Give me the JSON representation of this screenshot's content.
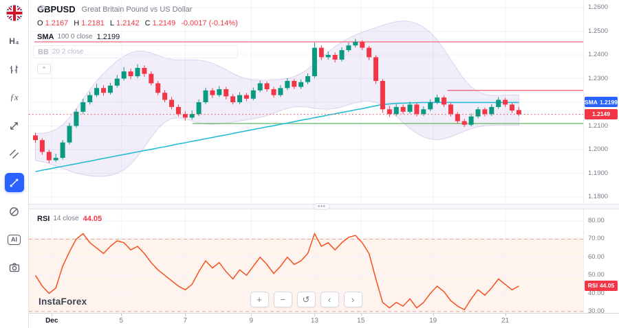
{
  "header": {
    "symbol": "GBPUSD",
    "description": "Great Britain Pound vs US Dollar",
    "ohlc": [
      {
        "k": "O",
        "v": "1.2167"
      },
      {
        "k": "H",
        "v": "1.2181"
      },
      {
        "k": "L",
        "v": "1.2142"
      },
      {
        "k": "C",
        "v": "1.2149"
      }
    ],
    "change": "-0.0017 (-0.14%)",
    "indicators": [
      {
        "name": "SMA",
        "params": "100 0 close",
        "value": "1.2199"
      },
      {
        "name": "BB",
        "params": "20 2 close",
        "value": ""
      }
    ],
    "collapse_glyph": "^"
  },
  "sidebar": {
    "items": [
      {
        "name": "account",
        "label": ""
      },
      {
        "name": "timeframe",
        "label": "H₄"
      },
      {
        "name": "chart-type",
        "label": ""
      },
      {
        "name": "indicators",
        "label": "ƒx"
      },
      {
        "name": "trend-line-tool",
        "label": ""
      },
      {
        "name": "brush-tool",
        "label": ""
      },
      {
        "name": "pattern-tool",
        "label": "",
        "active": true
      },
      {
        "name": "eraser-tool",
        "label": ""
      },
      {
        "name": "ai-tool",
        "label": "AI"
      },
      {
        "name": "snapshot-tool",
        "label": ""
      }
    ]
  },
  "price_axis": {
    "labels": [
      {
        "text": "1.2600",
        "value": 1.26
      },
      {
        "text": "1.2500",
        "value": 1.25
      },
      {
        "text": "1.2400",
        "value": 1.24
      },
      {
        "text": "1.2300",
        "value": 1.23
      },
      {
        "text": "1.2100",
        "value": 1.21
      },
      {
        "text": "1.2000",
        "value": 1.2
      },
      {
        "text": "1.1900",
        "value": 1.19
      },
      {
        "text": "1.1800",
        "value": 1.18
      }
    ],
    "sma_badge": {
      "label": "SMA",
      "value": "1.2199"
    },
    "price_badge": "1.2149"
  },
  "time_axis": {
    "labels": [
      {
        "text": "Dec",
        "idx": 2.4,
        "major": true
      },
      {
        "text": "5",
        "idx": 12.6
      },
      {
        "text": "7",
        "idx": 22
      },
      {
        "text": "9",
        "idx": 31.7
      },
      {
        "text": "13",
        "idx": 41
      },
      {
        "text": "15",
        "idx": 47.8
      },
      {
        "text": "19",
        "idx": 58.4
      },
      {
        "text": "21",
        "idx": 69
      }
    ]
  },
  "rsi_pane": {
    "legend": {
      "name": "RSI",
      "params": "14 close",
      "value": "44.05"
    },
    "axis_labels": [
      {
        "text": "80.00",
        "value": 80
      },
      {
        "text": "70.00",
        "value": 70
      },
      {
        "text": "60.00",
        "value": 60
      },
      {
        "text": "50.00",
        "value": 50
      },
      {
        "text": "40.00",
        "value": 40
      },
      {
        "text": "30.00",
        "value": 30
      }
    ],
    "badge": {
      "label": "RSI",
      "value": "44.05"
    }
  },
  "separator": {
    "handle": "•••"
  },
  "watermark": "InstaForex",
  "toolbar": {
    "buttons": [
      {
        "name": "zoom-in",
        "glyph": "+"
      },
      {
        "name": "zoom-out",
        "glyph": "−"
      },
      {
        "name": "reset-view",
        "glyph": "↺"
      },
      {
        "name": "scroll-left",
        "glyph": "‹"
      },
      {
        "name": "scroll-right",
        "glyph": "›"
      }
    ]
  },
  "colors": {
    "up": "#089981",
    "down": "#f23645",
    "sma": "#22bcd2",
    "bb": "#7c4dff",
    "rsi": "#f4511e",
    "accent": "#2962ff",
    "level_pink": "#f0647e",
    "level_green": "#5cb860"
  },
  "chart_data": [
    {
      "type": "candlestick",
      "title": "GBPUSD H4",
      "price_range": [
        1.18,
        1.26
      ],
      "grid_prices": [
        1.18,
        1.19,
        1.2,
        1.21,
        1.22,
        1.23,
        1.24,
        1.25,
        1.26
      ],
      "levels": [
        {
          "name": "resistance-upper",
          "price": 1.2455,
          "color": "#f0647e",
          "style": "solid",
          "x1": 0.01,
          "x2": 1
        },
        {
          "name": "resistance-lower",
          "price": 1.225,
          "color": "#f0647e",
          "style": "solid",
          "x1": 0.755,
          "x2": 1
        },
        {
          "name": "support",
          "price": 1.211,
          "color": "#5cb860",
          "style": "solid",
          "x1": 0.295,
          "x2": 1
        },
        {
          "name": "last-price",
          "price": 1.2149,
          "color": "#f23645",
          "style": "dotted",
          "x1": 0,
          "x2": 1
        }
      ],
      "candles": [
        [
          1.206,
          1.2072,
          1.2028,
          1.204
        ],
        [
          1.204,
          1.2048,
          1.1978,
          1.199
        ],
        [
          1.199,
          1.2,
          1.1942,
          1.1955
        ],
        [
          1.1955,
          1.1982,
          1.1948,
          1.1965
        ],
        [
          1.1965,
          1.204,
          1.1958,
          1.203
        ],
        [
          1.203,
          1.2112,
          1.2022,
          1.21
        ],
        [
          1.21,
          1.2172,
          1.2092,
          1.216
        ],
        [
          1.216,
          1.2215,
          1.215,
          1.22
        ],
        [
          1.22,
          1.2244,
          1.219,
          1.223
        ],
        [
          1.223,
          1.2278,
          1.2222,
          1.226
        ],
        [
          1.226,
          1.2272,
          1.2228,
          1.224
        ],
        [
          1.224,
          1.2282,
          1.2232,
          1.227
        ],
        [
          1.227,
          1.2315,
          1.2262,
          1.23
        ],
        [
          1.23,
          1.2348,
          1.2292,
          1.233
        ],
        [
          1.233,
          1.2342,
          1.2298,
          1.231
        ],
        [
          1.231,
          1.236,
          1.2302,
          1.2345
        ],
        [
          1.2345,
          1.2356,
          1.2308,
          1.232
        ],
        [
          1.232,
          1.233,
          1.227,
          1.228
        ],
        [
          1.228,
          1.229,
          1.223,
          1.224
        ],
        [
          1.224,
          1.2252,
          1.22,
          1.221
        ],
        [
          1.221,
          1.2222,
          1.217,
          1.218
        ],
        [
          1.218,
          1.219,
          1.214,
          1.215
        ],
        [
          1.215,
          1.2162,
          1.2122,
          1.2135
        ],
        [
          1.2135,
          1.2165,
          1.2126,
          1.215
        ],
        [
          1.215,
          1.2212,
          1.2142,
          1.22
        ],
        [
          1.22,
          1.2262,
          1.2192,
          1.225
        ],
        [
          1.225,
          1.226,
          1.2218,
          1.223
        ],
        [
          1.223,
          1.2268,
          1.2222,
          1.2255
        ],
        [
          1.2255,
          1.2265,
          1.2212,
          1.2225
        ],
        [
          1.2225,
          1.2235,
          1.219,
          1.22
        ],
        [
          1.22,
          1.2242,
          1.2192,
          1.223
        ],
        [
          1.223,
          1.224,
          1.2205,
          1.2215
        ],
        [
          1.2215,
          1.2262,
          1.2208,
          1.225
        ],
        [
          1.225,
          1.2292,
          1.2242,
          1.228
        ],
        [
          1.228,
          1.2288,
          1.2245,
          1.2255
        ],
        [
          1.2255,
          1.2265,
          1.222,
          1.223
        ],
        [
          1.223,
          1.2272,
          1.2222,
          1.226
        ],
        [
          1.226,
          1.2302,
          1.2252,
          1.229
        ],
        [
          1.229,
          1.2298,
          1.2255,
          1.2265
        ],
        [
          1.2265,
          1.2296,
          1.2256,
          1.2285
        ],
        [
          1.2285,
          1.2322,
          1.2276,
          1.231
        ],
        [
          1.231,
          1.2452,
          1.2302,
          1.243
        ],
        [
          1.243,
          1.244,
          1.2378,
          1.239
        ],
        [
          1.239,
          1.2415,
          1.238,
          1.24
        ],
        [
          1.24,
          1.241,
          1.2368,
          1.238
        ],
        [
          1.238,
          1.2432,
          1.2372,
          1.242
        ],
        [
          1.242,
          1.2452,
          1.2412,
          1.244
        ],
        [
          1.244,
          1.2468,
          1.2432,
          1.2455
        ],
        [
          1.2455,
          1.2462,
          1.242,
          1.243
        ],
        [
          1.243,
          1.2438,
          1.2378,
          1.239
        ],
        [
          1.239,
          1.2398,
          1.2278,
          1.229
        ],
        [
          1.229,
          1.2298,
          1.2155,
          1.217
        ],
        [
          1.217,
          1.2185,
          1.2138,
          1.215
        ],
        [
          1.215,
          1.2192,
          1.2142,
          1.218
        ],
        [
          1.218,
          1.219,
          1.215,
          1.216
        ],
        [
          1.216,
          1.2202,
          1.2152,
          1.219
        ],
        [
          1.219,
          1.2198,
          1.214,
          1.215
        ],
        [
          1.215,
          1.2182,
          1.2142,
          1.217
        ],
        [
          1.217,
          1.2212,
          1.2162,
          1.22
        ],
        [
          1.22,
          1.2232,
          1.2192,
          1.222
        ],
        [
          1.222,
          1.2228,
          1.218,
          1.219
        ],
        [
          1.219,
          1.2198,
          1.214,
          1.215
        ],
        [
          1.215,
          1.2158,
          1.211,
          1.212
        ],
        [
          1.212,
          1.213,
          1.2096,
          1.2105
        ],
        [
          1.2105,
          1.2152,
          1.2098,
          1.214
        ],
        [
          1.214,
          1.218,
          1.2132,
          1.217
        ],
        [
          1.217,
          1.2178,
          1.214,
          1.215
        ],
        [
          1.215,
          1.2192,
          1.2142,
          1.218
        ],
        [
          1.218,
          1.2222,
          1.2172,
          1.221
        ],
        [
          1.221,
          1.2218,
          1.218,
          1.219
        ],
        [
          1.219,
          1.2198,
          1.2155,
          1.2165
        ],
        [
          1.2167,
          1.2181,
          1.2142,
          1.2149
        ]
      ],
      "sma100": [
        1.1907,
        1.1913,
        1.1918,
        1.1924,
        1.1929,
        1.1935,
        1.194,
        1.1946,
        1.1951,
        1.1957,
        1.1963,
        1.1968,
        1.1974,
        1.1979,
        1.1985,
        1.199,
        1.1996,
        1.2001,
        1.2007,
        1.2012,
        1.2018,
        1.2024,
        1.2029,
        1.2035,
        1.204,
        1.2046,
        1.2051,
        1.2057,
        1.2062,
        1.2068,
        1.2074,
        1.2079,
        1.2085,
        1.209,
        1.2096,
        1.2101,
        1.2107,
        1.2112,
        1.2118,
        1.2124,
        1.2129,
        1.2135,
        1.214,
        1.2146,
        1.2151,
        1.2157,
        1.2162,
        1.2168,
        1.2173,
        1.2179,
        1.2185,
        1.219,
        1.2193,
        1.2195,
        1.2196,
        1.2197,
        1.2198,
        1.2199,
        1.2199,
        1.2199,
        1.2199,
        1.2199,
        1.2199,
        1.2199,
        1.2199,
        1.2199,
        1.2199,
        1.2199,
        1.2199,
        1.2199,
        1.2199,
        1.2199
      ]
    },
    {
      "type": "line",
      "name": "RSI",
      "period": 14,
      "last": 44.05,
      "range": [
        30,
        80
      ],
      "grid_values": [
        80,
        70,
        60,
        50,
        40,
        30
      ],
      "bands": [
        70,
        30
      ],
      "values": [
        50,
        44,
        40,
        43,
        55,
        63,
        70,
        73,
        68,
        65,
        62,
        66,
        69,
        68,
        64,
        66,
        62,
        57,
        53,
        50,
        47,
        44,
        42,
        45,
        52,
        58,
        54,
        57,
        52,
        48,
        53,
        50,
        55,
        60,
        56,
        51,
        55,
        60,
        56,
        58,
        62,
        73,
        66,
        68,
        64,
        68,
        71,
        72,
        68,
        62,
        48,
        35,
        32,
        35,
        33,
        37,
        32,
        35,
        40,
        44,
        41,
        36,
        33,
        31,
        37,
        42,
        39,
        43,
        48,
        45,
        42,
        44.05
      ]
    }
  ]
}
